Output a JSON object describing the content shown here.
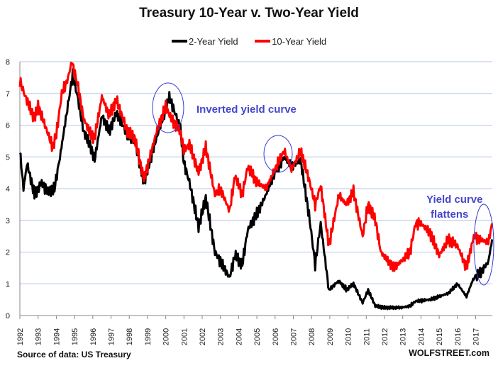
{
  "chart_data": {
    "type": "line",
    "title": "Treasury 10-Year v. Two-Year Yield",
    "xlabel": "",
    "ylabel": "",
    "xlim": [
      1992,
      2017.95
    ],
    "ylim": [
      0,
      8
    ],
    "grid": "horizontal",
    "legend_placement": "top-center",
    "x_ticks": [
      "1992",
      "1993",
      "1994",
      "1995",
      "1996",
      "1997",
      "1998",
      "1999",
      "2000",
      "2001",
      "2002",
      "2003",
      "2004",
      "2005",
      "2006",
      "2007",
      "2008",
      "2009",
      "2010",
      "2011",
      "2012",
      "2013",
      "2014",
      "2015",
      "2016",
      "2017"
    ],
    "y_ticks": [
      "0",
      "1",
      "2",
      "3",
      "4",
      "5",
      "6",
      "7",
      "8"
    ],
    "series": [
      {
        "name": "2-Year Yield",
        "color": "#000000",
        "points": [
          [
            1992,
            5.2
          ],
          [
            1992.2,
            4.0
          ],
          [
            1992.4,
            4.8
          ],
          [
            1992.8,
            3.8
          ],
          [
            1993.2,
            4.2
          ],
          [
            1993.5,
            3.9
          ],
          [
            1993.9,
            4.0
          ],
          [
            1994.2,
            5.0
          ],
          [
            1994.6,
            6.5
          ],
          [
            1994.9,
            7.6
          ],
          [
            1995.2,
            6.8
          ],
          [
            1995.5,
            5.8
          ],
          [
            1995.9,
            5.3
          ],
          [
            1996.1,
            4.9
          ],
          [
            1996.5,
            6.3
          ],
          [
            1996.9,
            5.8
          ],
          [
            1997.3,
            6.4
          ],
          [
            1997.9,
            5.7
          ],
          [
            1998.3,
            5.5
          ],
          [
            1998.8,
            4.2
          ],
          [
            1999.0,
            4.6
          ],
          [
            1999.5,
            5.6
          ],
          [
            2000.0,
            6.5
          ],
          [
            2000.2,
            6.9
          ],
          [
            2000.8,
            5.9
          ],
          [
            2001.0,
            4.8
          ],
          [
            2001.3,
            4.2
          ],
          [
            2001.8,
            2.8
          ],
          [
            2002.2,
            3.7
          ],
          [
            2002.7,
            2.0
          ],
          [
            2003.0,
            1.7
          ],
          [
            2003.5,
            1.2
          ],
          [
            2003.8,
            1.9
          ],
          [
            2004.2,
            1.6
          ],
          [
            2004.5,
            2.7
          ],
          [
            2005.0,
            3.2
          ],
          [
            2005.5,
            3.8
          ],
          [
            2005.9,
            4.4
          ],
          [
            2006.5,
            5.0
          ],
          [
            2006.9,
            4.7
          ],
          [
            2007.4,
            4.9
          ],
          [
            2007.9,
            3.0
          ],
          [
            2008.2,
            1.6
          ],
          [
            2008.5,
            2.9
          ],
          [
            2008.95,
            0.8
          ],
          [
            2009.5,
            1.1
          ],
          [
            2009.9,
            0.8
          ],
          [
            2010.3,
            1.0
          ],
          [
            2010.8,
            0.4
          ],
          [
            2011.1,
            0.8
          ],
          [
            2011.5,
            0.3
          ],
          [
            2012.0,
            0.25
          ],
          [
            2012.9,
            0.25
          ],
          [
            2013.4,
            0.3
          ],
          [
            2013.7,
            0.45
          ],
          [
            2014.5,
            0.5
          ],
          [
            2015.0,
            0.6
          ],
          [
            2015.5,
            0.7
          ],
          [
            2016.0,
            1.0
          ],
          [
            2016.5,
            0.6
          ],
          [
            2016.9,
            1.2
          ],
          [
            2017.2,
            1.3
          ],
          [
            2017.7,
            1.7
          ],
          [
            2017.9,
            2.4
          ]
        ]
      },
      {
        "name": "10-Year Yield",
        "color": "#ff0000",
        "points": [
          [
            1992,
            7.4
          ],
          [
            1992.3,
            6.9
          ],
          [
            1992.8,
            6.2
          ],
          [
            1993.0,
            6.6
          ],
          [
            1993.5,
            5.8
          ],
          [
            1993.8,
            5.3
          ],
          [
            1994.0,
            5.7
          ],
          [
            1994.3,
            7.0
          ],
          [
            1994.6,
            7.4
          ],
          [
            1994.85,
            8.0
          ],
          [
            1995.2,
            7.2
          ],
          [
            1995.5,
            6.2
          ],
          [
            1995.9,
            5.7
          ],
          [
            1996.1,
            5.6
          ],
          [
            1996.5,
            6.9
          ],
          [
            1996.9,
            6.3
          ],
          [
            1997.3,
            6.8
          ],
          [
            1997.9,
            5.8
          ],
          [
            1998.3,
            5.6
          ],
          [
            1998.8,
            4.3
          ],
          [
            1999.0,
            4.7
          ],
          [
            1999.5,
            5.8
          ],
          [
            2000.0,
            6.6
          ],
          [
            2000.3,
            6.2
          ],
          [
            2000.8,
            5.8
          ],
          [
            2001.0,
            5.2
          ],
          [
            2001.3,
            5.4
          ],
          [
            2001.8,
            4.5
          ],
          [
            2002.2,
            5.3
          ],
          [
            2002.7,
            3.8
          ],
          [
            2003.0,
            4.0
          ],
          [
            2003.5,
            3.3
          ],
          [
            2003.8,
            4.4
          ],
          [
            2004.2,
            3.8
          ],
          [
            2004.5,
            4.7
          ],
          [
            2005.0,
            4.2
          ],
          [
            2005.5,
            4.0
          ],
          [
            2005.9,
            4.5
          ],
          [
            2006.5,
            5.2
          ],
          [
            2006.9,
            4.6
          ],
          [
            2007.4,
            5.2
          ],
          [
            2007.9,
            4.2
          ],
          [
            2008.2,
            3.5
          ],
          [
            2008.5,
            4.1
          ],
          [
            2008.95,
            2.2
          ],
          [
            2009.5,
            3.8
          ],
          [
            2009.9,
            3.5
          ],
          [
            2010.3,
            3.9
          ],
          [
            2010.8,
            2.5
          ],
          [
            2011.1,
            3.5
          ],
          [
            2011.5,
            3.0
          ],
          [
            2011.8,
            2.0
          ],
          [
            2012.5,
            1.5
          ],
          [
            2012.9,
            1.7
          ],
          [
            2013.4,
            2.0
          ],
          [
            2013.7,
            2.9
          ],
          [
            2014.0,
            2.9
          ],
          [
            2014.5,
            2.6
          ],
          [
            2015.0,
            1.9
          ],
          [
            2015.5,
            2.4
          ],
          [
            2016.0,
            2.2
          ],
          [
            2016.5,
            1.5
          ],
          [
            2016.9,
            2.5
          ],
          [
            2017.2,
            2.4
          ],
          [
            2017.7,
            2.3
          ],
          [
            2017.9,
            2.9
          ]
        ]
      }
    ],
    "annotations": [
      {
        "text": "Inverted yield curve",
        "near_x": 2000.2
      },
      {
        "text": "Yield curve",
        "text2": "flattens",
        "near_x": 2017.9
      }
    ],
    "highlight_circles_at_x": [
      2000.2,
      2006.6,
      2017.9
    ]
  },
  "footer": {
    "source": "Source of data: US Treasury",
    "brand": "WOLFSTREET.com"
  }
}
